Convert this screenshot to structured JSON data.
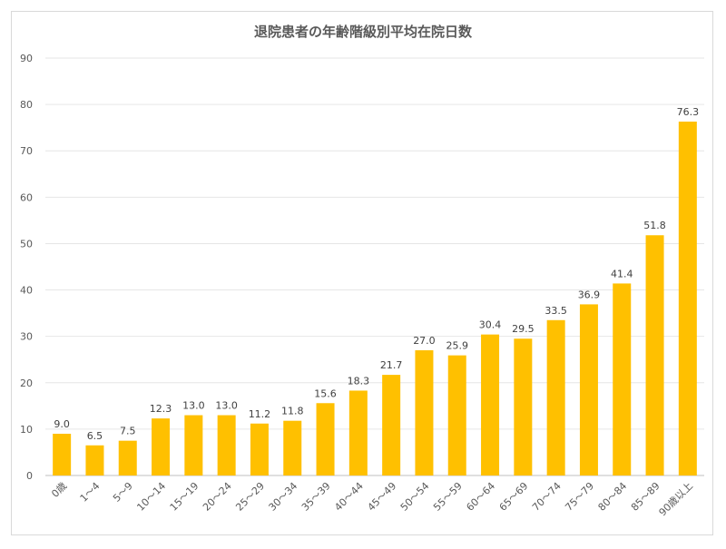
{
  "chart_data": {
    "type": "bar",
    "title": "退院患者の年齢階級別平均在院日数",
    "xlabel": "",
    "ylabel": "",
    "ylim": [
      0,
      90
    ],
    "yticks": [
      0,
      10,
      20,
      30,
      40,
      50,
      60,
      70,
      80,
      90
    ],
    "grid": true,
    "legend": "none",
    "bar_color": "#FFC000",
    "categories": [
      "0歳",
      "1～4",
      "5～9",
      "10～14",
      "15～19",
      "20～24",
      "25～29",
      "30～34",
      "35～39",
      "40～44",
      "45～49",
      "50～54",
      "55～59",
      "60～64",
      "65～69",
      "70～74",
      "75～79",
      "80～84",
      "85～89",
      "90歳以上"
    ],
    "values": [
      9.0,
      6.5,
      7.5,
      12.3,
      13.0,
      13.0,
      11.2,
      11.8,
      15.6,
      18.3,
      21.7,
      27.0,
      25.9,
      30.4,
      29.5,
      33.5,
      36.9,
      41.4,
      51.8,
      76.3
    ],
    "value_labels": [
      "9.0",
      "6.5",
      "7.5",
      "12.3",
      "13.0",
      "13.0",
      "11.2",
      "11.8",
      "15.6",
      "18.3",
      "21.7",
      "27.0",
      "25.9",
      "30.4",
      "29.5",
      "33.5",
      "36.9",
      "41.4",
      "51.8",
      "76.3"
    ]
  }
}
